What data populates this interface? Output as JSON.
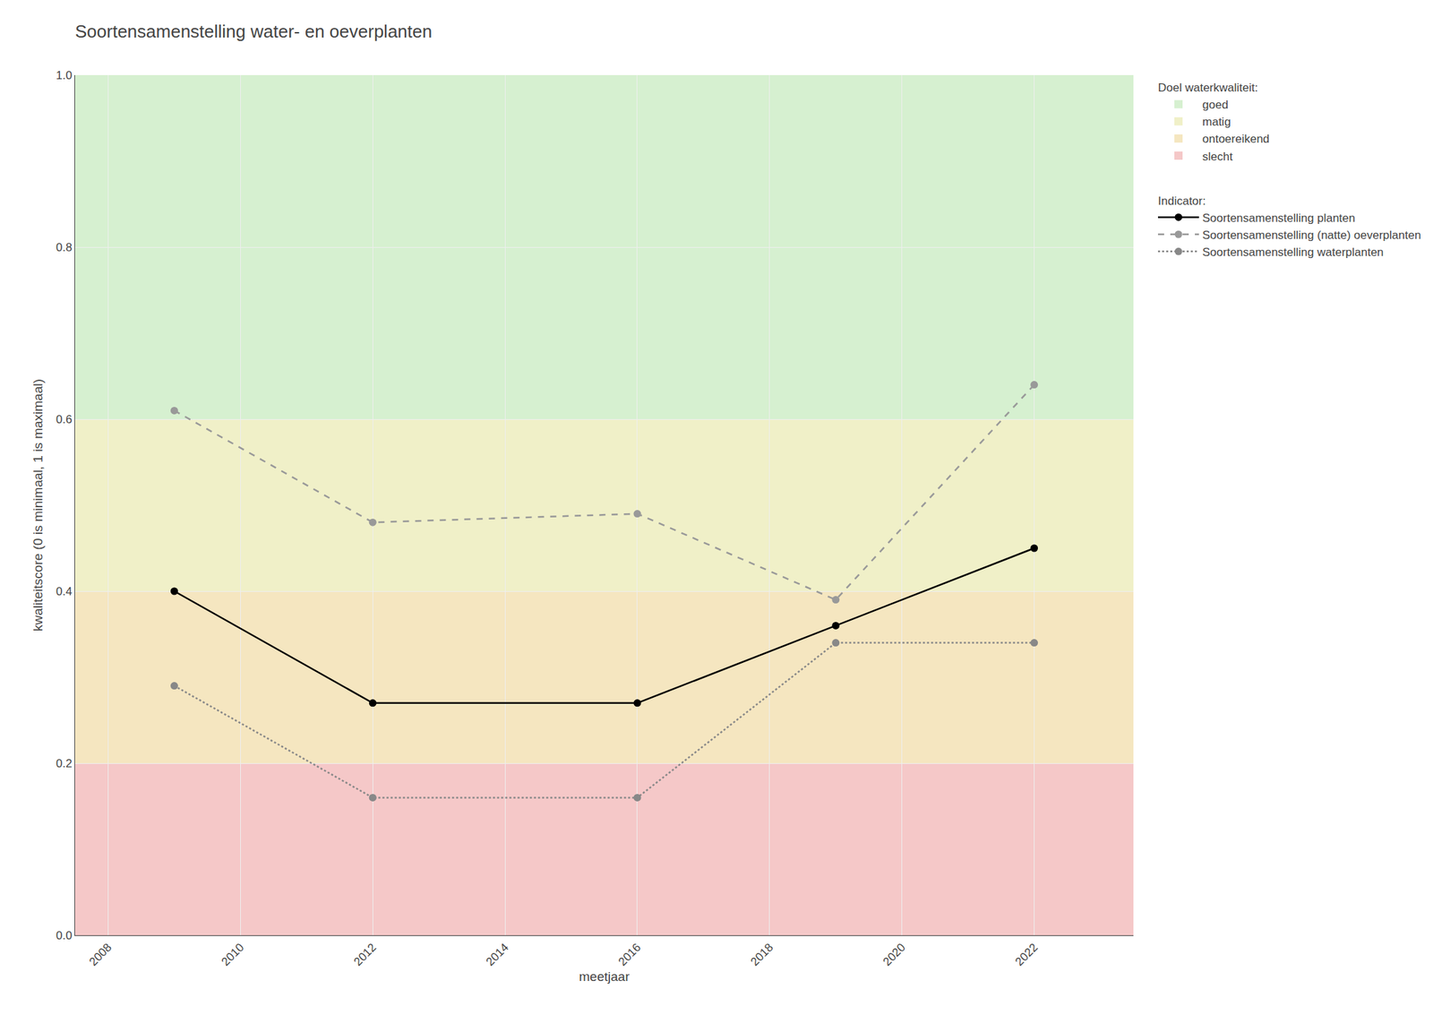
{
  "chart_data": {
    "type": "line",
    "title": "Soortensamenstelling water- en oeverplanten",
    "x_label": "meetjaar",
    "y_label": "kwaliteitscore (0 is minimaal, 1 is maximaal)",
    "xlim": [
      2007.5,
      2023.5
    ],
    "ylim": [
      0.0,
      1.0
    ],
    "xticks": [
      2008,
      2010,
      2012,
      2014,
      2016,
      2018,
      2020,
      2022
    ],
    "yticks": [
      {
        "value": 0.0,
        "label": "0.0"
      },
      0.2,
      0.4,
      0.6,
      0.8,
      {
        "value": 1.0,
        "label": "1.0"
      }
    ],
    "grid": true,
    "legend": "right",
    "zones_title": "Doel waterkwaliteit:",
    "zones": [
      {
        "name": "goed",
        "ymin": 0.6,
        "ymax": 1.0,
        "color": "#d6f0d0"
      },
      {
        "name": "matig",
        "ymin": 0.4,
        "ymax": 0.6,
        "color": "#f0f0c8"
      },
      {
        "name": "ontoereikend",
        "ymin": 0.2,
        "ymax": 0.4,
        "color": "#f5e6c0"
      },
      {
        "name": "slecht",
        "ymin": 0.0,
        "ymax": 0.2,
        "color": "#f5c8c8"
      }
    ],
    "legend_title": "Indicator:",
    "x": [
      2009,
      2012,
      2016,
      2019,
      2022
    ],
    "series": [
      {
        "name": "Soortensamenstelling planten",
        "values": [
          0.4,
          0.27,
          0.27,
          0.36,
          0.45
        ],
        "color": "#000000",
        "line_style": "solid",
        "marker": "circle"
      },
      {
        "name": "Soortensamenstelling (natte) oeverplanten",
        "values": [
          0.61,
          0.48,
          0.49,
          0.39,
          0.64
        ],
        "color": "#999999",
        "line_style": "dashed",
        "marker": "circle"
      },
      {
        "name": "Soortensamenstelling waterplanten",
        "values": [
          0.29,
          0.16,
          0.16,
          0.34,
          0.34
        ],
        "color": "#888888",
        "line_style": "dotted",
        "marker": "circle"
      }
    ]
  }
}
